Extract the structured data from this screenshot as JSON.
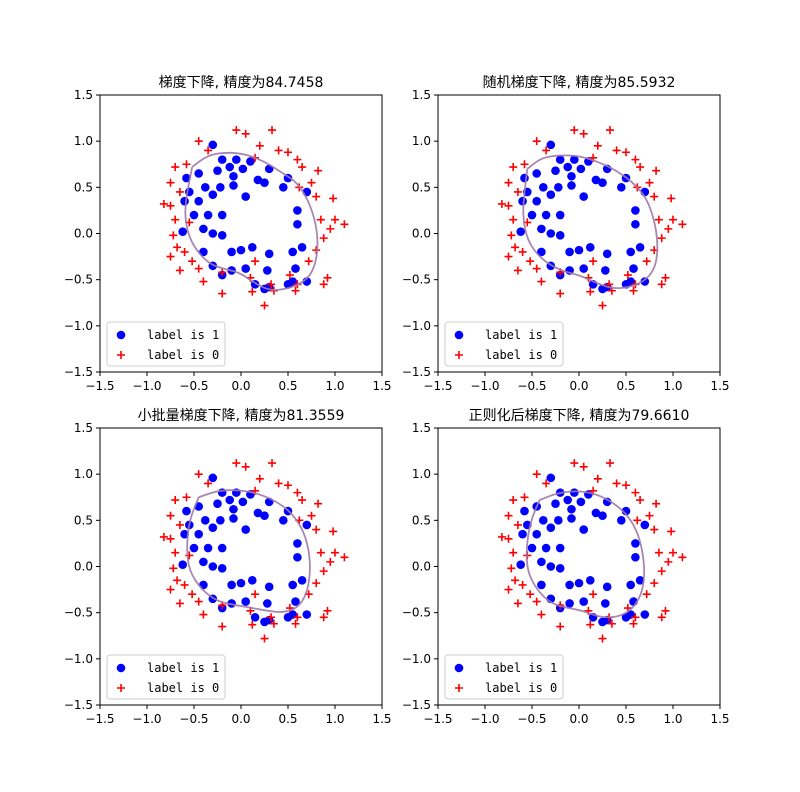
{
  "chart_data": [
    {
      "type": "scatter",
      "title": "梯度下降, 精度为84.7458",
      "xlim": [
        -1.5,
        1.5
      ],
      "ylim": [
        -1.5,
        1.5
      ],
      "xticks": [
        "−1.5",
        "−1.0",
        "−0.5",
        "0.0",
        "0.5",
        "1.0",
        "1.5"
      ],
      "yticks": [
        "−1.5",
        "−1.0",
        "−0.5",
        "0.0",
        "0.5",
        "1.0",
        "1.5"
      ],
      "legend_placement": "lower-left",
      "boundary": [
        [
          -0.52,
          0.72
        ],
        [
          -0.35,
          0.85
        ],
        [
          -0.15,
          0.88
        ],
        [
          0.05,
          0.86
        ],
        [
          0.25,
          0.78
        ],
        [
          0.45,
          0.65
        ],
        [
          0.6,
          0.55
        ],
        [
          0.72,
          0.35
        ],
        [
          0.8,
          0.1
        ],
        [
          0.82,
          -0.15
        ],
        [
          0.78,
          -0.38
        ],
        [
          0.68,
          -0.52
        ],
        [
          0.5,
          -0.6
        ],
        [
          0.3,
          -0.62
        ],
        [
          0.12,
          -0.52
        ],
        [
          -0.02,
          -0.42
        ],
        [
          -0.2,
          -0.38
        ],
        [
          -0.35,
          -0.32
        ],
        [
          -0.5,
          -0.15
        ],
        [
          -0.58,
          0.05
        ],
        [
          -0.6,
          0.3
        ],
        [
          -0.52,
          0.72
        ]
      ]
    },
    {
      "type": "scatter",
      "title": "随机梯度下降, 精度为85.5932",
      "xlim": [
        -1.5,
        1.5
      ],
      "ylim": [
        -1.5,
        1.5
      ],
      "xticks": [
        "−1.5",
        "−1.0",
        "−0.5",
        "0.0",
        "0.5",
        "1.0",
        "1.5"
      ],
      "yticks": [
        "−1.5",
        "−1.0",
        "−0.5",
        "0.0",
        "0.5",
        "1.0",
        "1.5"
      ],
      "legend_placement": "lower-left",
      "boundary": [
        [
          -0.55,
          0.7
        ],
        [
          -0.4,
          0.82
        ],
        [
          -0.2,
          0.85
        ],
        [
          0.0,
          0.84
        ],
        [
          0.2,
          0.78
        ],
        [
          0.4,
          0.68
        ],
        [
          0.58,
          0.55
        ],
        [
          0.72,
          0.38
        ],
        [
          0.8,
          0.15
        ],
        [
          0.84,
          -0.1
        ],
        [
          0.82,
          -0.35
        ],
        [
          0.72,
          -0.5
        ],
        [
          0.55,
          -0.58
        ],
        [
          0.35,
          -0.6
        ],
        [
          0.15,
          -0.52
        ],
        [
          0.0,
          -0.45
        ],
        [
          -0.2,
          -0.4
        ],
        [
          -0.4,
          -0.28
        ],
        [
          -0.55,
          -0.08
        ],
        [
          -0.6,
          0.2
        ],
        [
          -0.58,
          0.45
        ],
        [
          -0.55,
          0.7
        ]
      ]
    },
    {
      "type": "scatter",
      "title": "小批量梯度下降, 精度为81.3559",
      "xlim": [
        -1.5,
        1.5
      ],
      "ylim": [
        -1.5,
        1.5
      ],
      "xticks": [
        "−1.5",
        "−1.0",
        "−0.5",
        "0.0",
        "0.5",
        "1.0",
        "1.5"
      ],
      "yticks": [
        "−1.5",
        "−1.0",
        "−0.5",
        "0.0",
        "0.5",
        "1.0",
        "1.5"
      ],
      "legend_placement": "lower-left",
      "boundary": [
        [
          -0.45,
          0.75
        ],
        [
          -0.25,
          0.82
        ],
        [
          -0.05,
          0.83
        ],
        [
          0.15,
          0.8
        ],
        [
          0.35,
          0.72
        ],
        [
          0.52,
          0.6
        ],
        [
          0.65,
          0.42
        ],
        [
          0.72,
          0.2
        ],
        [
          0.74,
          -0.05
        ],
        [
          0.7,
          -0.3
        ],
        [
          0.6,
          -0.45
        ],
        [
          0.45,
          -0.5
        ],
        [
          0.28,
          -0.48
        ],
        [
          0.12,
          -0.45
        ],
        [
          -0.05,
          -0.42
        ],
        [
          -0.25,
          -0.38
        ],
        [
          -0.42,
          -0.25
        ],
        [
          -0.55,
          -0.05
        ],
        [
          -0.58,
          0.2
        ],
        [
          -0.55,
          0.5
        ],
        [
          -0.45,
          0.75
        ]
      ]
    },
    {
      "type": "scatter",
      "title": "正则化后梯度下降, 精度为79.6610",
      "xlim": [
        -1.5,
        1.5
      ],
      "ylim": [
        -1.5,
        1.5
      ],
      "xticks": [
        "−1.5",
        "−1.0",
        "−0.5",
        "0.0",
        "0.5",
        "1.0",
        "1.5"
      ],
      "yticks": [
        "−1.5",
        "−1.0",
        "−0.5",
        "0.0",
        "0.5",
        "1.0",
        "1.5"
      ],
      "legend_placement": "lower-left",
      "boundary": [
        [
          -0.42,
          0.72
        ],
        [
          -0.22,
          0.8
        ],
        [
          0.0,
          0.82
        ],
        [
          0.2,
          0.78
        ],
        [
          0.38,
          0.68
        ],
        [
          0.52,
          0.55
        ],
        [
          0.62,
          0.38
        ],
        [
          0.68,
          0.15
        ],
        [
          0.7,
          -0.1
        ],
        [
          0.66,
          -0.32
        ],
        [
          0.55,
          -0.48
        ],
        [
          0.4,
          -0.55
        ],
        [
          0.22,
          -0.55
        ],
        [
          0.05,
          -0.48
        ],
        [
          -0.12,
          -0.45
        ],
        [
          -0.3,
          -0.4
        ],
        [
          -0.45,
          -0.25
        ],
        [
          -0.55,
          -0.05
        ],
        [
          -0.56,
          0.2
        ],
        [
          -0.52,
          0.48
        ],
        [
          -0.42,
          0.72
        ]
      ]
    }
  ],
  "points": {
    "label1": [
      [
        -0.3,
        0.96
      ],
      [
        -0.58,
        0.6
      ],
      [
        -0.45,
        0.65
      ],
      [
        -0.2,
        0.8
      ],
      [
        -0.05,
        0.8
      ],
      [
        0.1,
        0.78
      ],
      [
        0.3,
        0.7
      ],
      [
        0.5,
        0.6
      ],
      [
        0.7,
        0.45
      ],
      [
        -0.12,
        0.72
      ],
      [
        -0.08,
        0.62
      ],
      [
        0.02,
        0.7
      ],
      [
        -0.25,
        0.68
      ],
      [
        -0.38,
        0.5
      ],
      [
        -0.3,
        0.42
      ],
      [
        0.25,
        0.55
      ],
      [
        0.18,
        0.58
      ],
      [
        -0.55,
        0.45
      ],
      [
        0.45,
        0.5
      ],
      [
        -0.08,
        0.52
      ],
      [
        -0.6,
        0.35
      ],
      [
        -0.45,
        0.35
      ],
      [
        -0.22,
        0.5
      ],
      [
        0.05,
        0.4
      ],
      [
        -0.35,
        0.2
      ],
      [
        -0.5,
        0.2
      ],
      [
        0.6,
        0.25
      ],
      [
        -0.2,
        0.2
      ],
      [
        -0.62,
        0.02
      ],
      [
        -0.4,
        0.05
      ],
      [
        -0.3,
        0.0
      ],
      [
        0.6,
        0.1
      ],
      [
        -0.2,
        -0.02
      ],
      [
        0.65,
        -0.15
      ],
      [
        0.0,
        -0.18
      ],
      [
        -0.1,
        -0.2
      ],
      [
        0.12,
        -0.15
      ],
      [
        0.3,
        -0.22
      ],
      [
        -0.4,
        -0.2
      ],
      [
        0.55,
        -0.2
      ],
      [
        -0.3,
        -0.35
      ],
      [
        -0.1,
        -0.4
      ],
      [
        0.05,
        -0.38
      ],
      [
        0.28,
        -0.4
      ],
      [
        -0.2,
        -0.45
      ],
      [
        0.58,
        -0.38
      ],
      [
        0.15,
        -0.55
      ],
      [
        0.3,
        -0.58
      ],
      [
        0.5,
        -0.55
      ],
      [
        0.55,
        -0.52
      ],
      [
        0.7,
        -0.52
      ],
      [
        0.25,
        -0.6
      ]
    ],
    "label0": [
      [
        -0.05,
        1.12
      ],
      [
        0.05,
        1.08
      ],
      [
        0.33,
        1.12
      ],
      [
        -0.45,
        1.0
      ],
      [
        0.2,
        0.95
      ],
      [
        0.4,
        0.9
      ],
      [
        -0.35,
        0.9
      ],
      [
        -0.7,
        0.72
      ],
      [
        -0.58,
        0.75
      ],
      [
        0.15,
        0.82
      ],
      [
        0.5,
        0.88
      ],
      [
        0.65,
        0.72
      ],
      [
        0.6,
        0.8
      ],
      [
        0.82,
        0.68
      ],
      [
        0.75,
        0.55
      ],
      [
        -0.75,
        0.55
      ],
      [
        -0.65,
        0.45
      ],
      [
        0.62,
        0.5
      ],
      [
        0.8,
        0.4
      ],
      [
        -0.82,
        0.32
      ],
      [
        -0.75,
        0.3
      ],
      [
        0.98,
        0.38
      ],
      [
        -0.7,
        0.15
      ],
      [
        -0.55,
        0.12
      ],
      [
        1.0,
        0.15
      ],
      [
        0.85,
        0.15
      ],
      [
        -0.72,
        -0.02
      ],
      [
        1.1,
        0.1
      ],
      [
        0.95,
        0.05
      ],
      [
        -0.68,
        -0.15
      ],
      [
        0.88,
        -0.05
      ],
      [
        -0.6,
        -0.2
      ],
      [
        -0.75,
        -0.25
      ],
      [
        0.8,
        -0.18
      ],
      [
        -0.52,
        -0.3
      ],
      [
        -0.45,
        -0.38
      ],
      [
        0.15,
        -0.3
      ],
      [
        0.72,
        -0.3
      ],
      [
        -0.65,
        -0.4
      ],
      [
        0.52,
        -0.45
      ],
      [
        -0.2,
        -0.42
      ],
      [
        0.92,
        -0.48
      ],
      [
        0.88,
        -0.55
      ],
      [
        -0.4,
        -0.52
      ],
      [
        0.1,
        -0.48
      ],
      [
        0.32,
        -0.55
      ],
      [
        0.6,
        -0.55
      ],
      [
        0.12,
        -0.63
      ],
      [
        0.35,
        -0.62
      ],
      [
        -0.2,
        -0.65
      ],
      [
        0.58,
        -0.62
      ],
      [
        0.25,
        -0.78
      ]
    ]
  },
  "legend": {
    "label1": "label is 1",
    "label0": "label is 0"
  },
  "colors": {
    "label1": "#0000ff",
    "label0": "#ff0000",
    "boundary": "#a07aa8"
  }
}
